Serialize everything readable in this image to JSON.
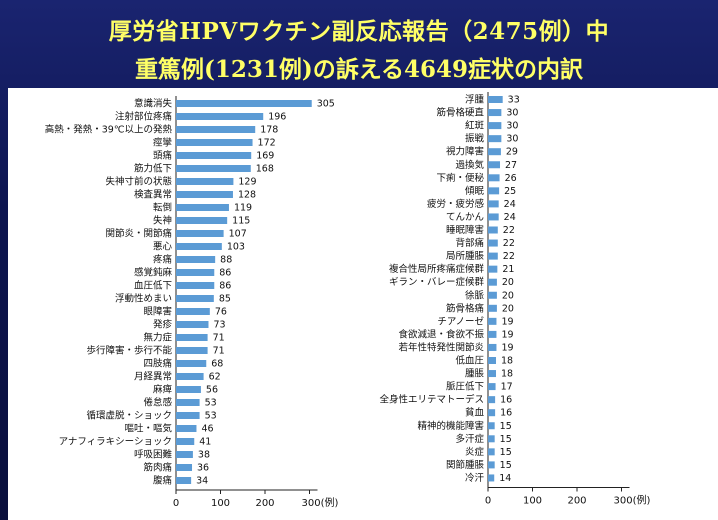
{
  "header": {
    "line1": "厚労省HPVワクチン副反応報告（2475例）中",
    "line2": "重篤例(1231例)の訴える4649症状の内訳"
  },
  "chart_data": [
    {
      "type": "bar",
      "orientation": "horizontal",
      "categories": [
        "意識消失",
        "注射部位疼痛",
        "高熱・発熱・39℃以上の発熱",
        "痙攣",
        "頭痛",
        "筋力低下",
        "失神寸前の状態",
        "検査異常",
        "転倒",
        "失神",
        "関節炎・関節痛",
        "悪心",
        "疼痛",
        "感覚鈍麻",
        "血圧低下",
        "浮動性めまい",
        "眼障害",
        "発疹",
        "無力症",
        "歩行障害・歩行不能",
        "四肢痛",
        "月経異常",
        "麻痺",
        "倦怠感",
        "循環虚脱・ショック",
        "嘔吐・嘔気",
        "アナフィラキシーショック",
        "呼吸困難",
        "筋肉痛",
        "腹痛"
      ],
      "values": [
        305,
        196,
        178,
        172,
        169,
        168,
        129,
        128,
        119,
        115,
        107,
        103,
        88,
        86,
        86,
        85,
        76,
        73,
        71,
        71,
        68,
        62,
        56,
        53,
        53,
        46,
        41,
        38,
        36,
        34
      ],
      "xlim": [
        0,
        300
      ],
      "xticks": [
        "0",
        "100",
        "200",
        "300(例)"
      ],
      "color": "#5b9bd5"
    },
    {
      "type": "bar",
      "orientation": "horizontal",
      "categories": [
        "浮腫",
        "筋骨格硬直",
        "紅斑",
        "振戦",
        "視力障害",
        "過換気",
        "下痢・便秘",
        "傾眠",
        "疲労・疲労感",
        "てんかん",
        "睡眠障害",
        "背部痛",
        "局所腫脹",
        "複合性局所疼痛症候群",
        "ギラン・バレー症候群",
        "徐脈",
        "筋骨格痛",
        "チアノーゼ",
        "食欲減退・食欲不振",
        "若年性特発性関節炎",
        "低血圧",
        "腫脹",
        "脈圧低下",
        "全身性エリテマトーデス",
        "貧血",
        "精神的機能障害",
        "多汗症",
        "炎症",
        "関節腫脹",
        "冷汗"
      ],
      "values": [
        33,
        30,
        30,
        30,
        29,
        27,
        26,
        25,
        24,
        24,
        22,
        22,
        22,
        21,
        20,
        20,
        20,
        19,
        19,
        19,
        18,
        18,
        17,
        16,
        16,
        15,
        15,
        15,
        15,
        14
      ],
      "xlim": [
        0,
        300
      ],
      "xticks": [
        "0",
        "100",
        "200",
        "300(例)"
      ],
      "color": "#5b9bd5"
    }
  ]
}
